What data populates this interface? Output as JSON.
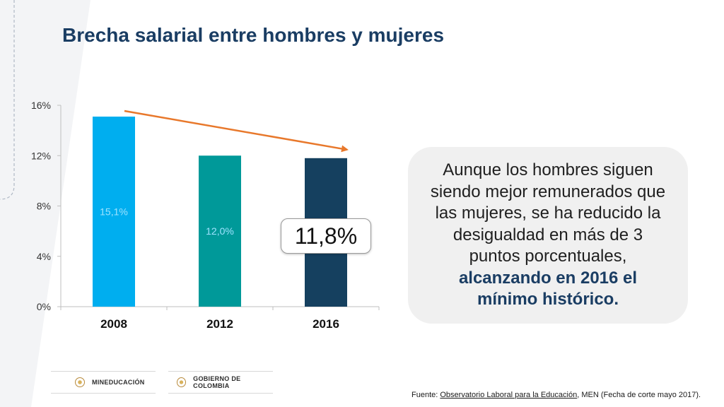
{
  "slide": {
    "title": "Brecha salarial entre hombres y mujeres",
    "callout": {
      "line1": "Aunque los hombres siguen",
      "line2": "siendo mejor remunerados que",
      "line3": "las mujeres, se ha reducido la",
      "line4": "desigualdad en más de 3",
      "line5": "puntos porcentuales,",
      "bold_line1": "alcanzando en 2016 el",
      "bold_line2": "mínimo histórico."
    },
    "highlight": "11,8%",
    "logos": [
      "MINEDUCACIÓN",
      "GOBIERNO DE COLOMBIA"
    ],
    "footer": {
      "prefix": "Fuente: ",
      "source": "Observatorio Laboral para la Educación",
      "suffix": ", MEN (Fecha de corte mayo 2017)."
    }
  },
  "chart_data": {
    "type": "bar",
    "categories": [
      "2008",
      "2012",
      "2016"
    ],
    "values": [
      15.1,
      12.0,
      11.8
    ],
    "data_labels": [
      "15,1%",
      "12,0%",
      ""
    ],
    "ylim": [
      0,
      16
    ],
    "yticks": [
      0,
      4,
      8,
      12,
      16
    ],
    "ytick_labels": [
      "0%",
      "4%",
      "8%",
      "12%",
      "16%"
    ],
    "colors": [
      "#00aeef",
      "#009999",
      "#15405f"
    ],
    "label_color": "#9fe3ff",
    "trend_arrow_color": "#e8782b",
    "grid": false
  }
}
